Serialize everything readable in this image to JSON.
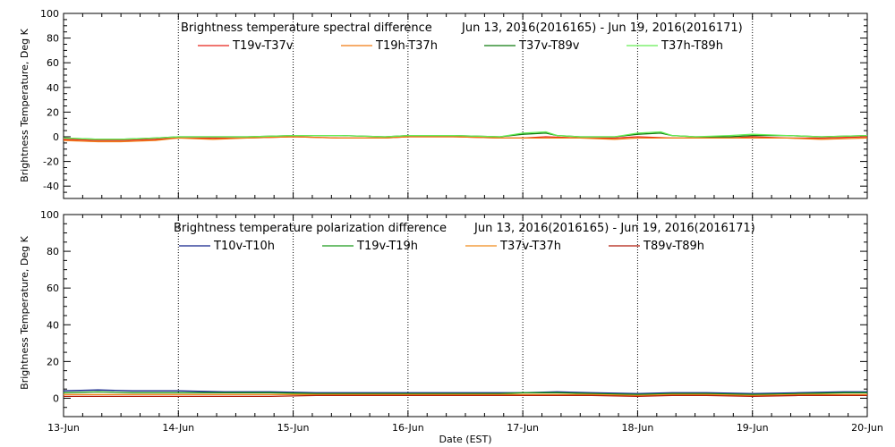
{
  "chart_data": [
    {
      "type": "line",
      "title": "Brightness temperature spectral difference",
      "date_range": "Jun 13, 2016(2016165) - Jun 19, 2016(2016171)",
      "xlabel": "",
      "ylabel": "Brightness Temperature, Deg K",
      "ylim": [
        -50,
        100
      ],
      "y_ticks": [
        -40,
        -20,
        0,
        20,
        40,
        60,
        80,
        100
      ],
      "xlim": [
        0,
        7
      ],
      "x_tick_labels": [
        "13-Jun",
        "14-Jun",
        "15-Jun",
        "16-Jun",
        "17-Jun",
        "18-Jun",
        "19-Jun",
        "20-Jun"
      ],
      "grid": "vertical dotted lines at each day",
      "series": [
        {
          "name": "T19v-T37v",
          "color": "#e8231b",
          "x": [
            0,
            0.3,
            0.5,
            0.8,
            1.0,
            1.3,
            1.6,
            2.0,
            2.4,
            2.8,
            3.0,
            3.4,
            3.8,
            4.0,
            4.2,
            4.5,
            4.8,
            5.0,
            5.3,
            5.6,
            5.8,
            6.0,
            6.3,
            6.6,
            7.0
          ],
          "values": [
            -2,
            -3,
            -3,
            -2,
            -1,
            -1,
            -1,
            0,
            -1,
            -1,
            0,
            0,
            -1,
            -1,
            0,
            -1,
            -1,
            0,
            -1,
            -1,
            -1,
            0,
            -1,
            -1,
            0
          ]
        },
        {
          "name": "T19h-T37h",
          "color": "#f07a12",
          "x": [
            0,
            0.3,
            0.5,
            0.8,
            1.0,
            1.3,
            1.6,
            2.0,
            2.4,
            2.8,
            3.0,
            3.4,
            3.8,
            4.0,
            4.2,
            4.5,
            4.8,
            5.0,
            5.3,
            5.6,
            5.8,
            6.0,
            6.3,
            6.6,
            7.0
          ],
          "values": [
            -3,
            -4,
            -4,
            -3,
            -1,
            -2,
            -1,
            0,
            -1,
            -1,
            0,
            0,
            -1,
            -1,
            -1,
            -1,
            -2,
            -1,
            -1,
            -1,
            -1,
            -1,
            -1,
            -2,
            -1
          ]
        },
        {
          "name": "T37v-T89v",
          "color": "#0d7a0d",
          "x": [
            0,
            0.3,
            0.5,
            0.8,
            1.0,
            1.3,
            1.6,
            2.0,
            2.4,
            2.8,
            3.0,
            3.4,
            3.8,
            4.0,
            4.2,
            4.3,
            4.5,
            4.8,
            5.0,
            5.2,
            5.3,
            5.5,
            5.8,
            6.0,
            6.3,
            6.6,
            7.0
          ],
          "values": [
            -1,
            -2,
            -2,
            -1,
            0,
            0,
            0,
            1,
            1,
            0,
            1,
            1,
            0,
            2,
            3,
            1,
            0,
            0,
            2,
            3,
            1,
            0,
            0,
            1,
            1,
            0,
            1
          ]
        },
        {
          "name": "T37h-T89h",
          "color": "#66ee55",
          "x": [
            0,
            0.3,
            0.5,
            0.8,
            1.0,
            1.3,
            1.6,
            2.0,
            2.4,
            2.8,
            3.0,
            3.4,
            3.8,
            4.0,
            4.2,
            4.3,
            4.5,
            4.8,
            5.0,
            5.2,
            5.3,
            5.5,
            5.8,
            6.0,
            6.3,
            6.6,
            7.0
          ],
          "values": [
            -1,
            -2,
            -2,
            -1,
            0,
            0,
            0,
            1,
            1,
            0,
            1,
            1,
            0,
            3,
            4,
            1,
            0,
            0,
            3,
            4,
            1,
            0,
            1,
            2,
            1,
            0,
            1
          ]
        }
      ]
    },
    {
      "type": "line",
      "title": "Brightness temperature polarization difference",
      "date_range": "Jun 13, 2016(2016165) - Jun 19, 2016(2016171)",
      "xlabel": "Date (EST)",
      "ylabel": "Brightness Temperature, Deg K",
      "ylim": [
        -10,
        100
      ],
      "y_ticks": [
        0,
        20,
        40,
        60,
        80,
        100
      ],
      "xlim": [
        0,
        7
      ],
      "x_tick_labels": [
        "13-Jun",
        "14-Jun",
        "15-Jun",
        "16-Jun",
        "17-Jun",
        "18-Jun",
        "19-Jun",
        "20-Jun"
      ],
      "grid": "vertical dotted lines at each day",
      "series": [
        {
          "name": "T10v-T10h",
          "color": "#10208a",
          "x": [
            0,
            0.3,
            0.6,
            1.0,
            1.4,
            1.8,
            2.2,
            2.6,
            3.0,
            3.4,
            3.8,
            4.0,
            4.3,
            4.6,
            5.0,
            5.3,
            5.6,
            6.0,
            6.4,
            6.8,
            7.0
          ],
          "values": [
            4,
            4.5,
            4,
            4,
            3.5,
            3.5,
            3,
            3,
            3,
            3,
            3,
            3,
            3.5,
            3,
            2.5,
            3,
            3,
            2.5,
            3,
            3.5,
            3.5
          ]
        },
        {
          "name": "T19v-T19h",
          "color": "#1b9a1b",
          "x": [
            0,
            0.3,
            0.6,
            1.0,
            1.4,
            1.8,
            2.2,
            2.6,
            3.0,
            3.4,
            3.8,
            4.0,
            4.3,
            4.6,
            5.0,
            5.3,
            5.6,
            6.0,
            6.4,
            6.8,
            7.0
          ],
          "values": [
            3,
            3.5,
            3,
            3,
            3,
            3,
            2.5,
            2.5,
            2.5,
            2.5,
            2.5,
            3,
            3,
            2.5,
            2,
            2.5,
            2.5,
            2,
            2.5,
            3,
            3
          ]
        },
        {
          "name": "T37v-T37h",
          "color": "#f08a1a",
          "x": [
            0,
            0.3,
            0.6,
            1.0,
            1.4,
            1.8,
            2.2,
            2.6,
            3.0,
            3.4,
            3.8,
            4.0,
            4.3,
            4.6,
            5.0,
            5.3,
            5.6,
            6.0,
            6.4,
            6.8,
            7.0
          ],
          "values": [
            2,
            2,
            2,
            2,
            2,
            2,
            2,
            2,
            2,
            2,
            2,
            2,
            2,
            2,
            1.5,
            2,
            2,
            1.5,
            2,
            2,
            2
          ]
        },
        {
          "name": "T89v-T89h",
          "color": "#b01c0c",
          "x": [
            0,
            0.3,
            0.6,
            1.0,
            1.4,
            1.8,
            2.2,
            2.6,
            3.0,
            3.4,
            3.8,
            4.0,
            4.3,
            4.6,
            5.0,
            5.3,
            5.6,
            6.0,
            6.4,
            6.8,
            7.0
          ],
          "values": [
            1,
            1,
            1,
            1,
            1,
            1,
            1.5,
            1.5,
            1.5,
            1.5,
            1.5,
            1.5,
            1.5,
            1.5,
            1,
            1.5,
            1.5,
            1,
            1.5,
            1.5,
            1.5
          ]
        }
      ]
    }
  ]
}
